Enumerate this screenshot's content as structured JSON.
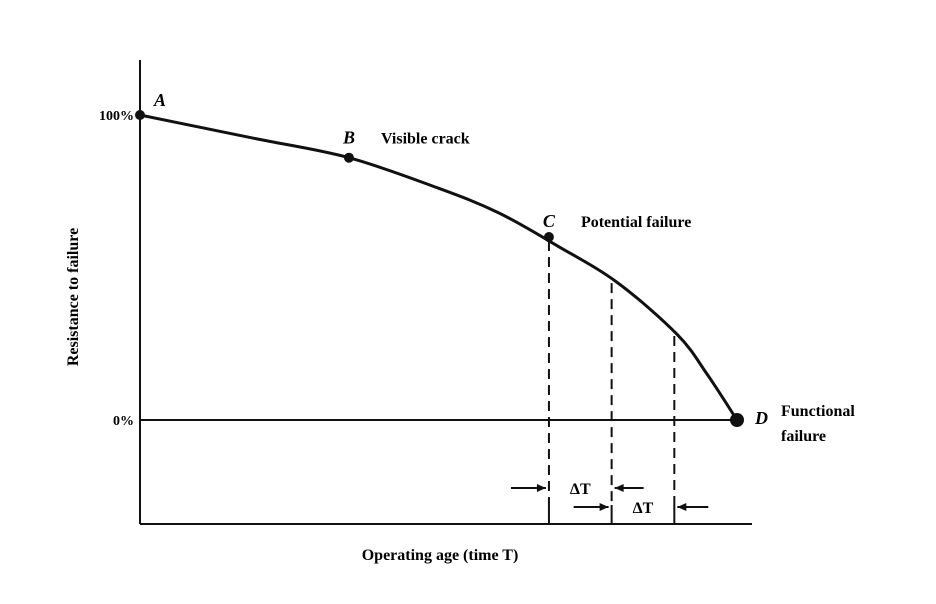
{
  "chart_data": {
    "type": "line",
    "title": "",
    "xlabel": "Operating age (time T)",
    "ylabel": "Resistance to failure",
    "y_ticks": [
      "100%",
      "0%"
    ],
    "y_tick_values": [
      100,
      0
    ],
    "ylim": [
      -35,
      117
    ],
    "xlim": [
      0,
      100
    ],
    "grid": false,
    "legend": "none",
    "series": [
      {
        "x": [
          0,
          10,
          20,
          35,
          50,
          60,
          70,
          80,
          90,
          95,
          100
        ],
        "y": [
          100,
          96,
          92,
          86,
          76,
          68,
          57,
          45,
          28,
          15,
          0
        ]
      }
    ],
    "points": [
      {
        "letter": "A",
        "label": "",
        "x": 0,
        "y": 100
      },
      {
        "letter": "B",
        "label": "Visible crack",
        "x": 35,
        "y": 86
      },
      {
        "letter": "C",
        "label": "Potential failure",
        "x": 68.5,
        "y": 60
      },
      {
        "letter": "D",
        "label": "Functional failure",
        "x": 100,
        "y": 0
      }
    ],
    "intervals": [
      {
        "label": "ΔT",
        "x_start": 68.5,
        "x_end": 79
      },
      {
        "label": "ΔT",
        "x_start": 79,
        "x_end": 89.5
      }
    ],
    "dashed_x": [
      68.5,
      79,
      89.5
    ]
  }
}
